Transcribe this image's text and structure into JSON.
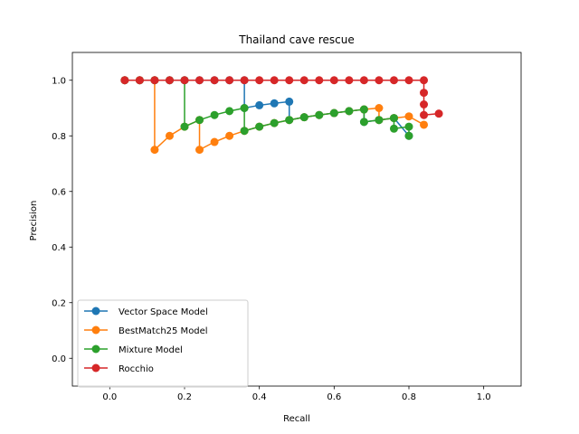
{
  "chart_data": {
    "type": "line",
    "title": "Thailand cave rescue",
    "xlabel": "Recall",
    "ylabel": "Precision",
    "xlim": [
      -0.1,
      1.1
    ],
    "ylim": [
      -0.1,
      1.1
    ],
    "xticks": [
      "0.0",
      "0.2",
      "0.4",
      "0.6",
      "0.8",
      "1.0"
    ],
    "yticks": [
      "0.0",
      "0.2",
      "0.4",
      "0.6",
      "0.8",
      "1.0"
    ],
    "grid": false,
    "legend_position": "lower-left",
    "series": [
      {
        "name": "Vector Space Model",
        "color": "#1f77b4",
        "x": [
          0.04,
          0.08,
          0.12,
          0.16,
          0.2,
          0.24,
          0.28,
          0.32,
          0.36,
          0.36,
          0.4,
          0.44,
          0.48,
          0.48,
          0.52,
          0.56,
          0.6,
          0.64,
          0.68,
          0.68,
          0.72,
          0.76,
          0.8
        ],
        "y": [
          1.0,
          1.0,
          1.0,
          1.0,
          1.0,
          1.0,
          1.0,
          1.0,
          1.0,
          0.9,
          0.91,
          0.917,
          0.923,
          0.857,
          0.867,
          0.875,
          0.882,
          0.889,
          0.895,
          0.85,
          0.857,
          0.864,
          0.8
        ]
      },
      {
        "name": "BestMatch25 Model",
        "color": "#ff7f0e",
        "x": [
          0.04,
          0.08,
          0.12,
          0.12,
          0.16,
          0.2,
          0.24,
          0.24,
          0.28,
          0.32,
          0.36,
          0.4,
          0.44,
          0.48,
          0.52,
          0.56,
          0.6,
          0.64,
          0.68,
          0.72,
          0.72,
          0.76,
          0.8,
          0.84
        ],
        "y": [
          1.0,
          1.0,
          1.0,
          0.75,
          0.8,
          0.833,
          0.857,
          0.75,
          0.778,
          0.8,
          0.818,
          0.833,
          0.846,
          0.857,
          0.867,
          0.875,
          0.882,
          0.889,
          0.895,
          0.9,
          0.857,
          0.864,
          0.87,
          0.84
        ]
      },
      {
        "name": "Mixture Model",
        "color": "#2ca02c",
        "x": [
          0.04,
          0.08,
          0.12,
          0.16,
          0.2,
          0.2,
          0.24,
          0.28,
          0.32,
          0.36,
          0.36,
          0.4,
          0.44,
          0.48,
          0.52,
          0.56,
          0.6,
          0.64,
          0.68,
          0.68,
          0.72,
          0.76,
          0.76,
          0.8,
          0.8
        ],
        "y": [
          1.0,
          1.0,
          1.0,
          1.0,
          1.0,
          0.833,
          0.857,
          0.875,
          0.889,
          0.9,
          0.818,
          0.833,
          0.846,
          0.857,
          0.867,
          0.875,
          0.882,
          0.889,
          0.895,
          0.85,
          0.857,
          0.864,
          0.826,
          0.833,
          0.8
        ]
      },
      {
        "name": "Rocchio",
        "color": "#d62728",
        "x": [
          0.04,
          0.08,
          0.12,
          0.16,
          0.2,
          0.24,
          0.28,
          0.32,
          0.36,
          0.4,
          0.44,
          0.48,
          0.52,
          0.56,
          0.6,
          0.64,
          0.68,
          0.72,
          0.76,
          0.8,
          0.84,
          0.84,
          0.84,
          0.84,
          0.88
        ],
        "y": [
          1.0,
          1.0,
          1.0,
          1.0,
          1.0,
          1.0,
          1.0,
          1.0,
          1.0,
          1.0,
          1.0,
          1.0,
          1.0,
          1.0,
          1.0,
          1.0,
          1.0,
          1.0,
          1.0,
          1.0,
          1.0,
          0.955,
          0.913,
          0.875,
          0.88
        ]
      }
    ]
  }
}
